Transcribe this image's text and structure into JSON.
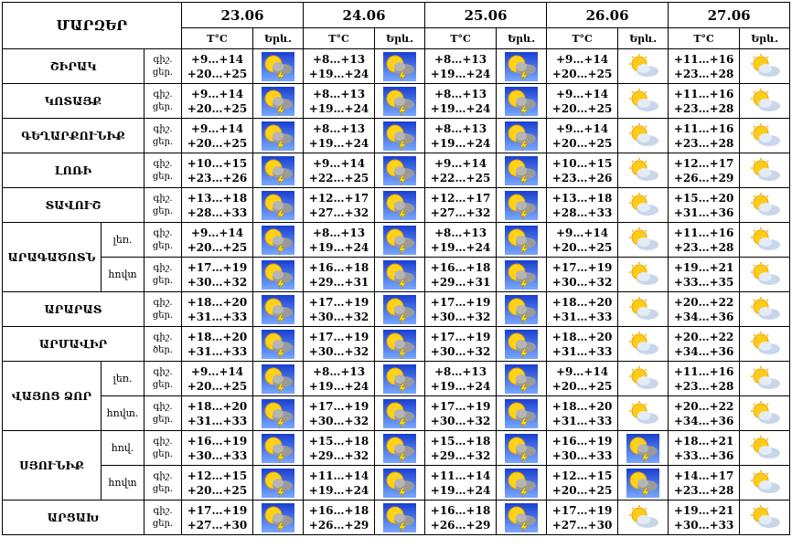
{
  "header": {
    "title": "ՄԱՐԶԵՐ",
    "dates": [
      "23.06",
      "24.06",
      "25.06",
      "26.06",
      "27.06"
    ],
    "temp": "T°C",
    "icon_col": "Երև."
  },
  "regions": [
    {
      "name": "ՇԻՐԱԿ",
      "parts": [
        {
          "times": [
            "գիշ.",
            "ցեր."
          ],
          "days": [
            {
              "night": "+9…+14",
              "day": "+20…+25",
              "icon": "storm"
            },
            {
              "night": "+8…+13",
              "day": "+19…+24",
              "icon": "storm"
            },
            {
              "night": "+8…+13",
              "day": "+19…+24",
              "icon": "storm"
            },
            {
              "night": "+9…+14",
              "day": "+20…+25",
              "icon": "partly"
            },
            {
              "night": "+11…+16",
              "day": "+23…+28",
              "icon": "partly"
            }
          ]
        }
      ]
    },
    {
      "name": "ԿՈՏԱՅՔ",
      "parts": [
        {
          "times": [
            "գիշ.",
            "ցեր."
          ],
          "days": [
            {
              "night": "+9…+14",
              "day": "+20…+25",
              "icon": "storm"
            },
            {
              "night": "+8…+13",
              "day": "+19…+24",
              "icon": "storm"
            },
            {
              "night": "+8…+13",
              "day": "+19…+24",
              "icon": "storm"
            },
            {
              "night": "+9…+14",
              "day": "+20…+25",
              "icon": "partly"
            },
            {
              "night": "+11…+16",
              "day": "+23…+28",
              "icon": "partly"
            }
          ]
        }
      ]
    },
    {
      "name": "ԳԵՂԱՐՔՈՒՆԻՔ",
      "parts": [
        {
          "times": [
            "գիշ.",
            "ցեր."
          ],
          "days": [
            {
              "night": "+9…+14",
              "day": "+20…+25",
              "icon": "storm"
            },
            {
              "night": "+8…+13",
              "day": "+19…+24",
              "icon": "storm"
            },
            {
              "night": "+8…+13",
              "day": "+19…+24",
              "icon": "storm"
            },
            {
              "night": "+9…+14",
              "day": "+20…+25",
              "icon": "partly"
            },
            {
              "night": "+11…+16",
              "day": "+23…+28",
              "icon": "partly"
            }
          ]
        }
      ]
    },
    {
      "name": "ԼՈՌԻ",
      "parts": [
        {
          "times": [
            "գիշ.",
            "ցեր."
          ],
          "days": [
            {
              "night": "+10…+15",
              "day": "+23…+26",
              "icon": "storm"
            },
            {
              "night": "+9…+14",
              "day": "+22…+25",
              "icon": "storm"
            },
            {
              "night": "+9…+14",
              "day": "+22…+25",
              "icon": "storm"
            },
            {
              "night": "+10…+15",
              "day": "+23…+26",
              "icon": "partly"
            },
            {
              "night": "+12…+17",
              "day": "+26…+29",
              "icon": "partly"
            }
          ]
        }
      ]
    },
    {
      "name": "ՏԱՎՈՒՇ",
      "parts": [
        {
          "times": [
            "գիշ.",
            "ցեր."
          ],
          "days": [
            {
              "night": "+13…+18",
              "day": "+28…+33",
              "icon": "storm"
            },
            {
              "night": "+12…+17",
              "day": "+27…+32",
              "icon": "storm"
            },
            {
              "night": "+12…+17",
              "day": "+27…+32",
              "icon": "storm"
            },
            {
              "night": "+13…+18",
              "day": "+28…+33",
              "icon": "partly"
            },
            {
              "night": "+15…+20",
              "day": "+31…+36",
              "icon": "partly"
            }
          ]
        }
      ]
    },
    {
      "name": "ԱՐԱԳԱԾՈՏՆ",
      "parts": [
        {
          "label": "լեռ.",
          "times": [
            "գիշ.",
            "ցեր."
          ],
          "days": [
            {
              "night": "+9…+14",
              "day": "+20…+25",
              "icon": "storm"
            },
            {
              "night": "+8…+13",
              "day": "+19…+24",
              "icon": "storm"
            },
            {
              "night": "+8…+13",
              "day": "+19…+24",
              "icon": "storm"
            },
            {
              "night": "+9…+14",
              "day": "+20…+25",
              "icon": "partly"
            },
            {
              "night": "+11…+16",
              "day": "+23…+28",
              "icon": "partly"
            }
          ]
        },
        {
          "label": "հովտ",
          "times": [
            "գիշ.",
            "ցեր."
          ],
          "days": [
            {
              "night": "+17…+19",
              "day": "+30…+32",
              "icon": "storm"
            },
            {
              "night": "+16…+18",
              "day": "+29…+31",
              "icon": "storm"
            },
            {
              "night": "+16…+18",
              "day": "+29…+31",
              "icon": "storm"
            },
            {
              "night": "+17…+19",
              "day": "+30…+32",
              "icon": "partly"
            },
            {
              "night": "+19…+21",
              "day": "+33…+35",
              "icon": "partly"
            }
          ]
        }
      ]
    },
    {
      "name": "ԱՐԱՐԱՏ",
      "parts": [
        {
          "times": [
            "գիշ.",
            "ցեր."
          ],
          "days": [
            {
              "night": "+18…+20",
              "day": "+31…+33",
              "icon": "storm"
            },
            {
              "night": "+17…+19",
              "day": "+30…+32",
              "icon": "storm"
            },
            {
              "night": "+17…+19",
              "day": "+30…+32",
              "icon": "storm"
            },
            {
              "night": "+18…+20",
              "day": "+31…+33",
              "icon": "partly"
            },
            {
              "night": "+20…+22",
              "day": "+34…+36",
              "icon": "partly"
            }
          ]
        }
      ]
    },
    {
      "name": "ԱՐՄԱՎԻՐ",
      "parts": [
        {
          "times": [
            "գիշ.",
            "ծեր."
          ],
          "days": [
            {
              "night": "+18…+20",
              "day": "+31…+33",
              "icon": "storm"
            },
            {
              "night": "+17…+19",
              "day": "+30…+32",
              "icon": "storm"
            },
            {
              "night": "+17…+19",
              "day": "+30…+32",
              "icon": "storm"
            },
            {
              "night": "+18…+20",
              "day": "+31…+33",
              "icon": "partly"
            },
            {
              "night": "+20…+22",
              "day": "+34…+36",
              "icon": "partly"
            }
          ]
        }
      ]
    },
    {
      "name": "ՎԱՅՈՑ ՁՈՐ",
      "parts": [
        {
          "label": "լեռ.",
          "times": [
            "գիշ.",
            "ցեր."
          ],
          "days": [
            {
              "night": "+9…+14",
              "day": "+20…+25",
              "icon": "storm"
            },
            {
              "night": "+8…+13",
              "day": "+19…+24",
              "icon": "storm"
            },
            {
              "night": "+8…+13",
              "day": "+19…+24",
              "icon": "storm"
            },
            {
              "night": "+9…+14",
              "day": "+20…+25",
              "icon": "partly"
            },
            {
              "night": "+11…+16",
              "day": "+23…+28",
              "icon": "partly"
            }
          ]
        },
        {
          "label": "հովտ.",
          "times": [
            "գիշ.",
            "ցեր."
          ],
          "days": [
            {
              "night": "+18…+20",
              "day": "+31…+33",
              "icon": "storm"
            },
            {
              "night": "+17…+19",
              "day": "+30…+32",
              "icon": "storm"
            },
            {
              "night": "+17…+19",
              "day": "+30…+32",
              "icon": "storm"
            },
            {
              "night": "+18…+20",
              "day": "+31…+33",
              "icon": "partly"
            },
            {
              "night": "+20…+22",
              "day": "+34…+36",
              "icon": "partly"
            }
          ]
        }
      ]
    },
    {
      "name": "ՍՅՈՒՆԻՔ",
      "parts": [
        {
          "label": "հով.",
          "times": [
            "գիշ.",
            "ցեր."
          ],
          "days": [
            {
              "night": "+16…+19",
              "day": "+30…+33",
              "icon": "storm"
            },
            {
              "night": "+15…+18",
              "day": "+29…+32",
              "icon": "storm"
            },
            {
              "night": "+15…+18",
              "day": "+29…+32",
              "icon": "storm"
            },
            {
              "night": "+16…+19",
              "day": "+30…+33",
              "icon": "storm"
            },
            {
              "night": "+18…+21",
              "day": "+33…+36",
              "icon": "partly"
            }
          ]
        },
        {
          "label": "հովտ",
          "times": [
            "գիշ.",
            "ցեր."
          ],
          "days": [
            {
              "night": "+12…+15",
              "day": "+20…+25",
              "icon": "storm"
            },
            {
              "night": "+11…+14",
              "day": "+19…+24",
              "icon": "storm"
            },
            {
              "night": "+11…+14",
              "day": "+19…+24",
              "icon": "storm"
            },
            {
              "night": "+12…+15",
              "day": "+20…+25",
              "icon": "storm"
            },
            {
              "night": "+14…+17",
              "day": "+23…+28",
              "icon": "partly"
            }
          ]
        }
      ]
    },
    {
      "name": "ԱՐՑԱԽ",
      "parts": [
        {
          "times": [
            "գիշ.",
            "ցեր."
          ],
          "days": [
            {
              "night": "+17…+19",
              "day": "+27…+30",
              "icon": "storm"
            },
            {
              "night": "+16…+18",
              "day": "+26…+29",
              "icon": "storm"
            },
            {
              "night": "+16…+18",
              "day": "+26…+29",
              "icon": "storm"
            },
            {
              "night": "+17…+19",
              "day": "+27…+30",
              "icon": "partly"
            },
            {
              "night": "+19…+21",
              "day": "+30…+33",
              "icon": "partly"
            }
          ]
        }
      ]
    }
  ]
}
